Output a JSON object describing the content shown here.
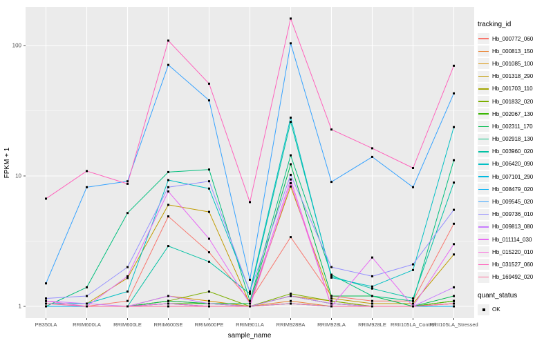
{
  "colors": {
    "panel_bg": "#EBEBEB",
    "grid": "#FFFFFF",
    "tick_text": "#4D4D4D",
    "axis_title_text": "#000000",
    "tick_mark": "#333333",
    "point": "#000000",
    "legend_key_bg": "#F0F0F0"
  },
  "legend": {
    "tracking_title": "tracking_id",
    "quant_title": "quant_status",
    "quant_items": [
      {
        "label": "OK",
        "shape": "filled-square"
      }
    ]
  },
  "chart_data": {
    "type": "line",
    "title": "",
    "xlabel": "sample_name",
    "ylabel": "FPKM + 1",
    "y_scale": "log10",
    "y_ticks": [
      1,
      10,
      100
    ],
    "y_tick_labels": [
      "1",
      "10",
      "100"
    ],
    "y_minor_ticks": [
      3.1623,
      31.623
    ],
    "ylim": [
      0.81,
      198
    ],
    "grid": "on",
    "legend_position": "right",
    "point_shape": "filled-square",
    "categories": [
      "PB350LA",
      "RRIM600LA",
      "RRIM600LE",
      "RRIM600SE",
      "RRIM600PE",
      "RRIM901LA",
      "RRIM928BA",
      "RRIM928LA",
      "RRIM928LE",
      "RRII105LA_Control",
      "RRII105LA_Stressed"
    ],
    "series": [
      {
        "name": "Hb_000772_060",
        "color": "#F8766D",
        "values": [
          1.0,
          1.0,
          1.1,
          4.9,
          2.6,
          1.1,
          3.4,
          1.2,
          1.1,
          1.1,
          4.3
        ]
      },
      {
        "name": "Hb_000813_150",
        "color": "#EA8331",
        "values": [
          1.0,
          1.0,
          1.0,
          1.1,
          1.05,
          1.0,
          1.1,
          1.0,
          1.0,
          1.0,
          1.05
        ]
      },
      {
        "name": "Hb_001085_100",
        "color": "#D89000",
        "values": [
          1.0,
          1.0,
          1.0,
          1.2,
          1.1,
          1.0,
          1.2,
          1.1,
          1.0,
          1.0,
          1.1
        ]
      },
      {
        "name": "Hb_001318_290",
        "color": "#C09B00",
        "values": [
          1.05,
          1.05,
          1.65,
          6.0,
          5.3,
          1.05,
          8.3,
          1.15,
          1.05,
          1.05,
          2.5
        ]
      },
      {
        "name": "Hb_001703_110",
        "color": "#A3A500",
        "values": [
          1.0,
          1.0,
          1.0,
          1.05,
          1.0,
          1.0,
          1.2,
          1.05,
          1.0,
          1.0,
          1.05
        ]
      },
      {
        "name": "Hb_001832_020",
        "color": "#7CAE00",
        "values": [
          1.0,
          1.0,
          1.0,
          1.1,
          1.3,
          1.0,
          1.25,
          1.1,
          1.0,
          1.0,
          1.1
        ]
      },
      {
        "name": "Hb_002067_130",
        "color": "#39B600",
        "values": [
          1.0,
          1.0,
          1.0,
          1.05,
          1.05,
          1.0,
          1.2,
          1.05,
          1.0,
          1.0,
          1.1
        ]
      },
      {
        "name": "Hb_002311_170",
        "color": "#00BB4E",
        "values": [
          1.0,
          1.0,
          1.0,
          1.1,
          1.05,
          1.05,
          12.3,
          1.2,
          1.2,
          1.0,
          1.2
        ]
      },
      {
        "name": "Hb_002918_130",
        "color": "#00BF7D",
        "values": [
          1.0,
          1.4,
          5.2,
          10.7,
          11.2,
          1.1,
          14.4,
          1.75,
          1.2,
          1.1,
          13.2
        ]
      },
      {
        "name": "Hb_003960_020",
        "color": "#00C1A3",
        "values": [
          1.0,
          1.0,
          1.0,
          2.9,
          2.2,
          1.25,
          26.0,
          1.7,
          1.37,
          1.15,
          8.9
        ]
      },
      {
        "name": "Hb_006420_090",
        "color": "#00BFC4",
        "values": [
          1.05,
          1.05,
          1.3,
          9.3,
          8.0,
          1.3,
          28.0,
          1.66,
          1.42,
          1.9,
          23.7
        ]
      },
      {
        "name": "Hb_007101_290",
        "color": "#00BAE0",
        "values": [
          1.0,
          1.0,
          1.0,
          1.0,
          1.0,
          1.0,
          1.05,
          1.0,
          1.0,
          1.0,
          1.0
        ]
      },
      {
        "name": "Hb_008479_020",
        "color": "#00B0F6",
        "values": [
          1.0,
          1.0,
          1.0,
          1.05,
          1.0,
          1.0,
          1.05,
          1.0,
          1.0,
          1.0,
          1.0
        ]
      },
      {
        "name": "Hb_009545_020",
        "color": "#35A2FF",
        "values": [
          1.5,
          8.2,
          9.1,
          71,
          38,
          1.6,
          104,
          9.0,
          14.0,
          8.2,
          43
        ]
      },
      {
        "name": "Hb_009736_010",
        "color": "#9590FF",
        "values": [
          1.15,
          1.2,
          2.0,
          8.2,
          9.1,
          1.3,
          10.2,
          2.0,
          1.7,
          2.1,
          5.5
        ]
      },
      {
        "name": "Hb_009813_080",
        "color": "#C77CFF",
        "values": [
          1.1,
          1.05,
          1.0,
          1.2,
          1.05,
          1.0,
          1.2,
          1.05,
          1.0,
          1.0,
          1.4
        ]
      },
      {
        "name": "Hb_011114_030",
        "color": "#E76BF3",
        "values": [
          1.05,
          1.0,
          1.7,
          7.6,
          3.3,
          1.05,
          9.4,
          1.0,
          2.37,
          1.0,
          3.0
        ]
      },
      {
        "name": "Hb_015220_010",
        "color": "#FA62DB",
        "values": [
          1.1,
          1.0,
          1.0,
          1.05,
          1.0,
          1.0,
          8.8,
          1.0,
          1.0,
          1.0,
          1.05
        ]
      },
      {
        "name": "Hb_031527_060",
        "color": "#FF62BC",
        "values": [
          6.7,
          10.9,
          8.7,
          109,
          51,
          6.3,
          161,
          22.7,
          16.3,
          11.5,
          70
        ]
      },
      {
        "name": "Hb_169492_020",
        "color": "#FF6A98",
        "values": [
          1.05,
          1.0,
          1.0,
          1.0,
          1.0,
          1.0,
          1.05,
          1.0,
          1.0,
          1.0,
          1.05
        ]
      }
    ]
  }
}
